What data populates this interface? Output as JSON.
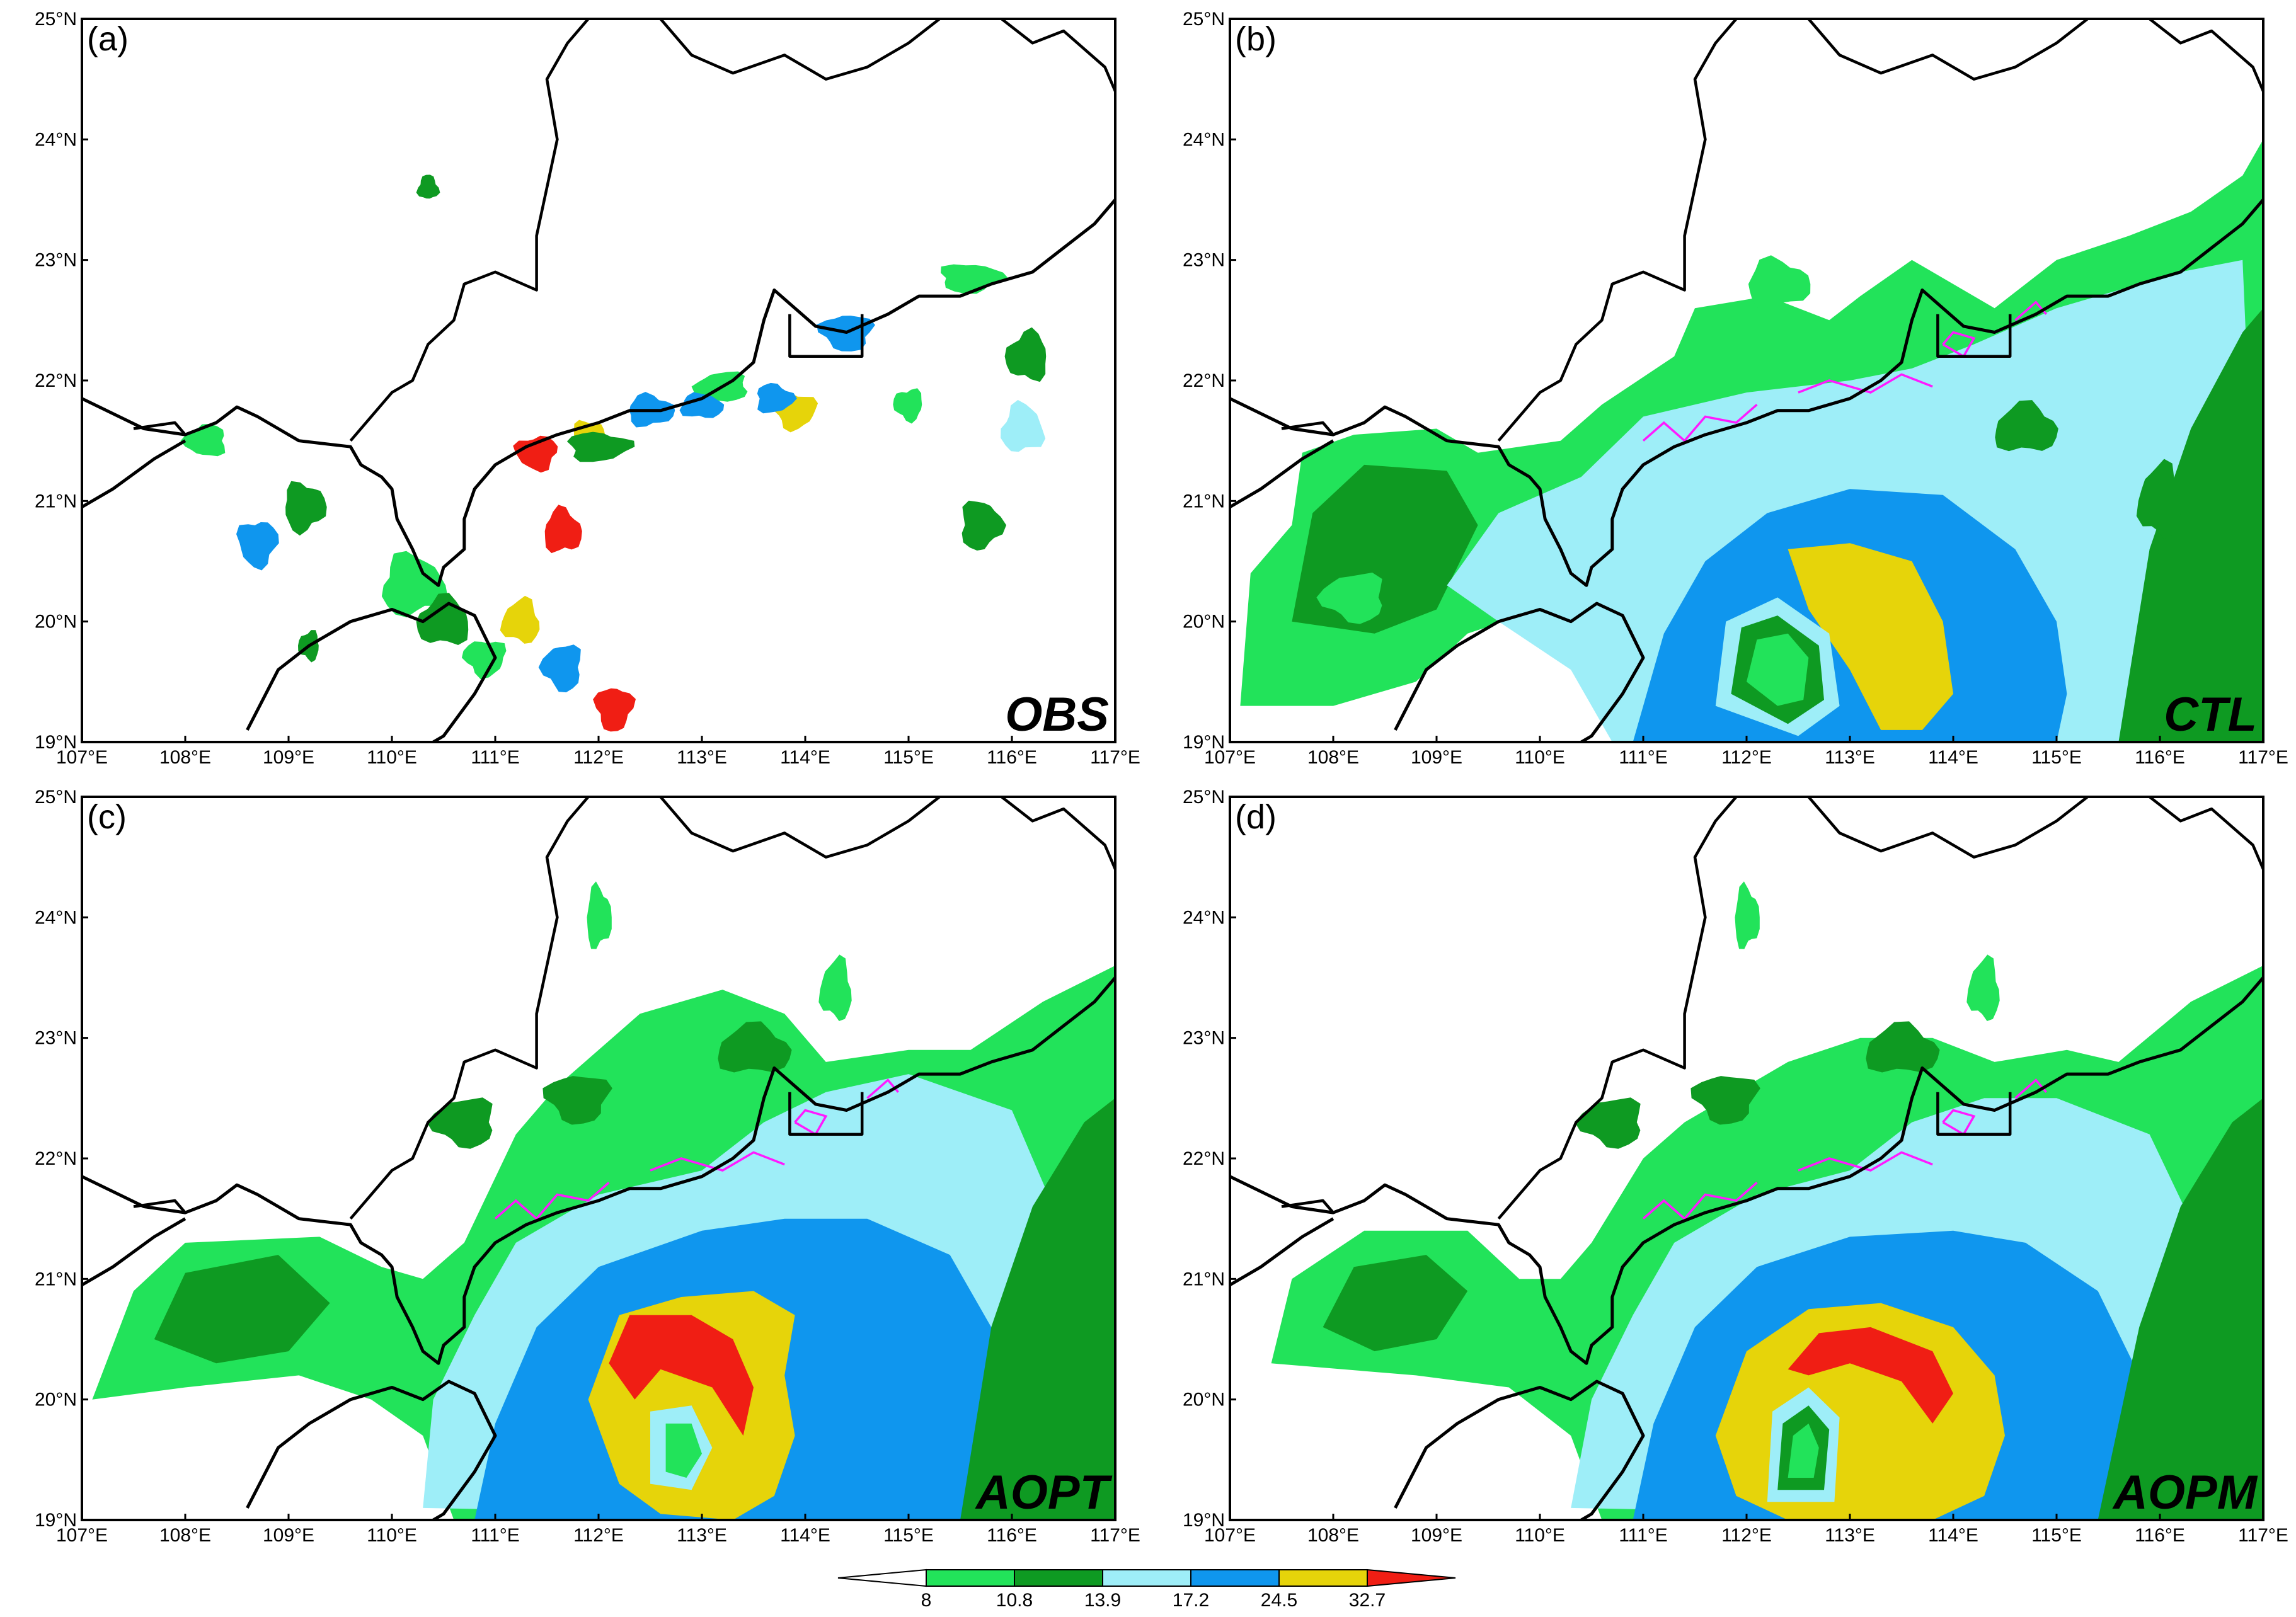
{
  "colors": {
    "c8": "#22e35a",
    "c10_8": "#0e9a22",
    "c13_9": "#9eeef8",
    "c17_2": "#0f96ee",
    "c24_5": "#e6d40a",
    "c32_7": "#f01e14",
    "coast": "#000000",
    "contour": "#ff19ff"
  },
  "axes": {
    "lon_labels": [
      "107°E",
      "108°E",
      "109°E",
      "110°E",
      "111°E",
      "112°E",
      "113°E",
      "114°E",
      "115°E",
      "116°E",
      "117°E"
    ],
    "lat_labels": [
      "19°N",
      "20°N",
      "21°N",
      "22°N",
      "23°N",
      "24°N",
      "25°N"
    ],
    "lon_range": [
      107,
      117
    ],
    "lat_range": [
      19,
      25
    ]
  },
  "panels": [
    {
      "letter": "(a)",
      "name": "OBS"
    },
    {
      "letter": "(b)",
      "name": "CTL"
    },
    {
      "letter": "(c)",
      "name": "AOPT"
    },
    {
      "letter": "(d)",
      "name": "AOPM"
    }
  ],
  "colorbar": {
    "labels": [
      "8",
      "10.8",
      "13.9",
      "17.2",
      "24.5",
      "32.7"
    ],
    "colors": [
      "#ffffff",
      "#22e35a",
      "#0e9a22",
      "#9eeef8",
      "#0f96ee",
      "#e6d40a",
      "#f01e14"
    ]
  }
}
